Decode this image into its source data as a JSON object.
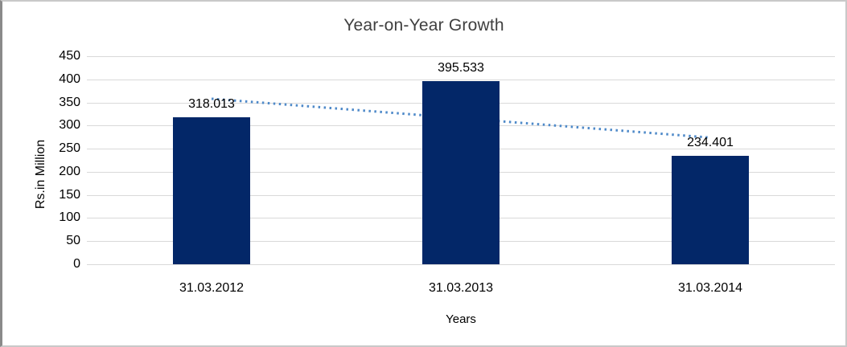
{
  "chart_data": {
    "type": "bar",
    "title": "Year-on-Year Growth",
    "xlabel": "Years",
    "ylabel": "Rs.in Million",
    "categories": [
      "31.03.2012",
      "31.03.2013",
      "31.03.2014"
    ],
    "values": [
      318.013,
      395.533,
      234.401
    ],
    "value_labels": [
      "318.013",
      "395.533",
      "234.401"
    ],
    "ylim": [
      0,
      450
    ],
    "yticks": [
      0,
      50,
      100,
      150,
      200,
      250,
      300,
      350,
      400,
      450
    ],
    "grid": true,
    "legend": "none",
    "trendline": {
      "type": "linear",
      "style": "dotted",
      "start_value": 358,
      "end_value": 274
    },
    "colors": {
      "bar": "#032768",
      "trendline": "#4f8ac9",
      "gridline": "#d9d9d9",
      "title_text": "#3f3f3f",
      "axis_text": "#000000",
      "frame_border": "#c9c9c9",
      "frame_border_left": "#8a8a8a",
      "background": "#ffffff"
    }
  }
}
